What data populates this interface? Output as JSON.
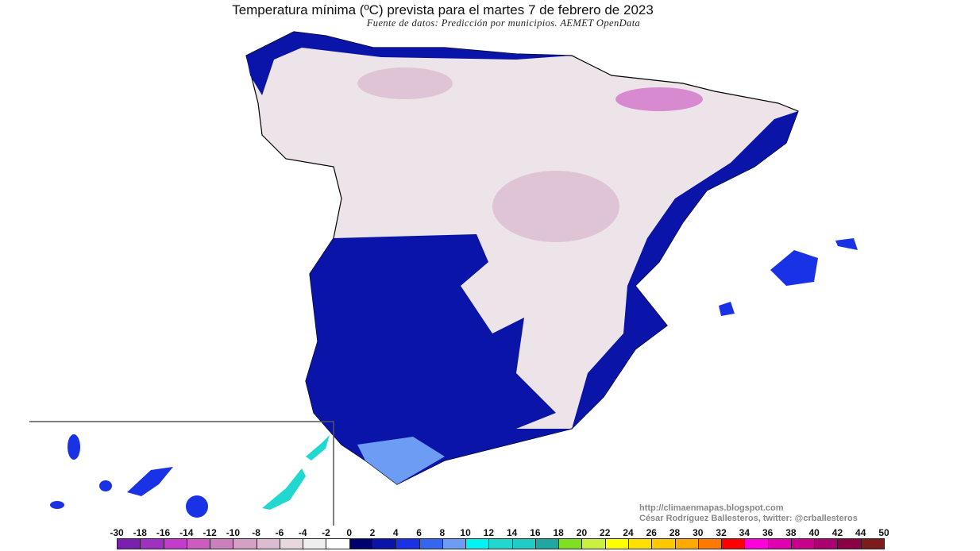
{
  "title": "Temperatura mínima (ºC) prevista para el martes 7 de febrero de 2023",
  "subtitle": "Fuente de datos: Predicción por municipios. AEMET OpenData",
  "credits": {
    "url": "http://climaenmapas.blogspot.com",
    "author": "César Rodríguez Ballesteros, twitter: @crballesteros"
  },
  "legend": {
    "labels": [
      "-30",
      "-18",
      "-16",
      "-14",
      "-12",
      "-10",
      "-8",
      "-6",
      "-4",
      "-2",
      "0",
      "2",
      "4",
      "6",
      "8",
      "10",
      "12",
      "14",
      "16",
      "18",
      "20",
      "22",
      "24",
      "26",
      "28",
      "30",
      "32",
      "34",
      "36",
      "38",
      "40",
      "42",
      "44",
      "50"
    ],
    "colors": [
      "#7a1fb0",
      "#a030c0",
      "#c53ccc",
      "#cc5cc0",
      "#cc80bb",
      "#d4a0c4",
      "#dcbcd0",
      "#e6d8de",
      "#eeeeee",
      "#ffffff",
      "#00006e",
      "#0a14a8",
      "#1a32e6",
      "#3466f0",
      "#6c9cf4",
      "#00f4f4",
      "#20d8d0",
      "#20ccc8",
      "#20a8a0",
      "#80e020",
      "#ccf040",
      "#ffff00",
      "#ffe000",
      "#ffc800",
      "#ffaa00",
      "#ff7800",
      "#ff0000",
      "#ff00dc",
      "#e000b0",
      "#c8008c",
      "#aa0070",
      "#8c0044",
      "#7c1c1c"
    ]
  },
  "map": {
    "region": "Spain",
    "inset": "Canary Islands",
    "dominant_colors": {
      "north_interior": "#e6d8de",
      "southwest_coast": "#1a32e6",
      "mountains": "#c53ccc"
    }
  }
}
